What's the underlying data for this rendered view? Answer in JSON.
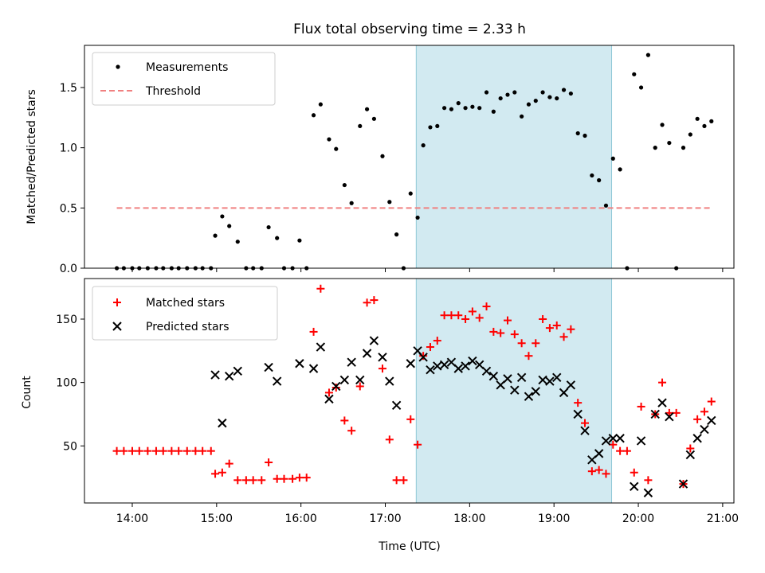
{
  "chart_data": [
    {
      "type": "scatter",
      "title": "Flux total observing time = 2.33 h",
      "xlabel": "",
      "ylabel": "Matched/Predicted stars",
      "ylim": [
        0,
        1.85
      ],
      "xlim": [
        "13:26",
        "21:08"
      ],
      "x_ticks": [
        "14:00",
        "15:00",
        "16:00",
        "17:00",
        "18:00",
        "19:00",
        "20:00",
        "21:00"
      ],
      "y_ticks": [
        "0.0",
        "0.5",
        "1.0",
        "1.5"
      ],
      "legend_position": "top-left",
      "highlight_span": {
        "start": "17:22",
        "end": "19:41",
        "color": "#add8e6"
      },
      "series": [
        {
          "name": "Measurements",
          "marker": "dot",
          "color": "#000000",
          "points": [
            [
              "13:49",
              0
            ],
            [
              "13:54",
              0
            ],
            [
              "14:00",
              0
            ],
            [
              "14:05",
              0
            ],
            [
              "14:11",
              0
            ],
            [
              "14:17",
              0
            ],
            [
              "14:22",
              0
            ],
            [
              "14:28",
              0
            ],
            [
              "14:33",
              0
            ],
            [
              "14:39",
              0
            ],
            [
              "14:45",
              0
            ],
            [
              "14:50",
              0
            ],
            [
              "14:56",
              0
            ],
            [
              "14:59",
              0.27
            ],
            [
              "15:04",
              0.43
            ],
            [
              "15:09",
              0.35
            ],
            [
              "15:15",
              0.22
            ],
            [
              "15:21",
              0
            ],
            [
              "15:26",
              0
            ],
            [
              "15:32",
              0
            ],
            [
              "15:37",
              0.34
            ],
            [
              "15:43",
              0.25
            ],
            [
              "15:48",
              0
            ],
            [
              "15:54",
              0
            ],
            [
              "15:59",
              0.23
            ],
            [
              "16:04",
              0
            ],
            [
              "16:09",
              1.27
            ],
            [
              "16:14",
              1.36
            ],
            [
              "16:20",
              1.07
            ],
            [
              "16:25",
              0.99
            ],
            [
              "16:31",
              0.69
            ],
            [
              "16:36",
              0.54
            ],
            [
              "16:42",
              1.18
            ],
            [
              "16:47",
              1.32
            ],
            [
              "16:52",
              1.24
            ],
            [
              "16:58",
              0.93
            ],
            [
              "17:03",
              0.55
            ],
            [
              "17:08",
              0.28
            ],
            [
              "17:13",
              0
            ],
            [
              "17:18",
              0.62
            ],
            [
              "17:23",
              0.42
            ],
            [
              "17:27",
              1.02
            ],
            [
              "17:32",
              1.17
            ],
            [
              "17:37",
              1.18
            ],
            [
              "17:42",
              1.33
            ],
            [
              "17:47",
              1.32
            ],
            [
              "17:52",
              1.37
            ],
            [
              "17:57",
              1.33
            ],
            [
              "18:02",
              1.34
            ],
            [
              "18:07",
              1.33
            ],
            [
              "18:12",
              1.46
            ],
            [
              "18:17",
              1.3
            ],
            [
              "18:22",
              1.41
            ],
            [
              "18:27",
              1.44
            ],
            [
              "18:32",
              1.46
            ],
            [
              "18:37",
              1.26
            ],
            [
              "18:42",
              1.36
            ],
            [
              "18:47",
              1.39
            ],
            [
              "18:52",
              1.46
            ],
            [
              "18:57",
              1.42
            ],
            [
              "19:02",
              1.41
            ],
            [
              "19:07",
              1.48
            ],
            [
              "19:12",
              1.45
            ],
            [
              "19:17",
              1.12
            ],
            [
              "19:22",
              1.1
            ],
            [
              "19:27",
              0.77
            ],
            [
              "19:32",
              0.73
            ],
            [
              "19:37",
              0.52
            ],
            [
              "19:42",
              0.91
            ],
            [
              "19:47",
              0.82
            ],
            [
              "19:52",
              0
            ],
            [
              "19:57",
              1.61
            ],
            [
              "20:02",
              1.5
            ],
            [
              "20:07",
              1.77
            ],
            [
              "20:12",
              1.0
            ],
            [
              "20:17",
              1.19
            ],
            [
              "20:22",
              1.04
            ],
            [
              "20:27",
              0
            ],
            [
              "20:32",
              1.0
            ],
            [
              "20:37",
              1.11
            ],
            [
              "20:42",
              1.24
            ],
            [
              "20:47",
              1.18
            ],
            [
              "20:52",
              1.22
            ]
          ]
        },
        {
          "name": "Threshold",
          "marker": "dashed-line",
          "color": "#f08080",
          "points": [
            [
              "13:49",
              0.5
            ],
            [
              "20:52",
              0.5
            ]
          ]
        }
      ]
    },
    {
      "type": "scatter",
      "title": "",
      "xlabel": "Time (UTC)",
      "ylabel": "Count",
      "ylim": [
        5,
        182
      ],
      "xlim": [
        "13:26",
        "21:08"
      ],
      "x_ticks": [
        "14:00",
        "15:00",
        "16:00",
        "17:00",
        "18:00",
        "19:00",
        "20:00",
        "21:00"
      ],
      "y_ticks": [
        "50",
        "100",
        "150"
      ],
      "legend_position": "top-left",
      "highlight_span": {
        "start": "17:22",
        "end": "19:41",
        "color": "#add8e6"
      },
      "series": [
        {
          "name": "Matched stars",
          "marker": "plus",
          "color": "#ff0000",
          "points": [
            [
              "13:49",
              46
            ],
            [
              "13:54",
              46
            ],
            [
              "14:00",
              46
            ],
            [
              "14:05",
              46
            ],
            [
              "14:11",
              46
            ],
            [
              "14:17",
              46
            ],
            [
              "14:22",
              46
            ],
            [
              "14:28",
              46
            ],
            [
              "14:33",
              46
            ],
            [
              "14:39",
              46
            ],
            [
              "14:45",
              46
            ],
            [
              "14:50",
              46
            ],
            [
              "14:56",
              46
            ],
            [
              "14:59",
              28
            ],
            [
              "15:04",
              29
            ],
            [
              "15:09",
              36
            ],
            [
              "15:15",
              23
            ],
            [
              "15:21",
              23
            ],
            [
              "15:26",
              23
            ],
            [
              "15:32",
              23
            ],
            [
              "15:37",
              37
            ],
            [
              "15:43",
              24
            ],
            [
              "15:48",
              24
            ],
            [
              "15:54",
              24
            ],
            [
              "15:59",
              25
            ],
            [
              "16:04",
              25
            ],
            [
              "16:09",
              140
            ],
            [
              "16:14",
              174
            ],
            [
              "16:20",
              92
            ],
            [
              "16:25",
              96
            ],
            [
              "16:31",
              70
            ],
            [
              "16:36",
              62
            ],
            [
              "16:42",
              97
            ],
            [
              "16:47",
              163
            ],
            [
              "16:52",
              165
            ],
            [
              "16:58",
              111
            ],
            [
              "17:03",
              55
            ],
            [
              "17:08",
              23
            ],
            [
              "17:13",
              23
            ],
            [
              "17:18",
              71
            ],
            [
              "17:23",
              51
            ],
            [
              "17:27",
              121
            ],
            [
              "17:32",
              128
            ],
            [
              "17:37",
              133
            ],
            [
              "17:42",
              153
            ],
            [
              "17:47",
              153
            ],
            [
              "17:52",
              153
            ],
            [
              "17:57",
              150
            ],
            [
              "18:02",
              156
            ],
            [
              "18:07",
              151
            ],
            [
              "18:12",
              160
            ],
            [
              "18:17",
              140
            ],
            [
              "18:22",
              139
            ],
            [
              "18:27",
              149
            ],
            [
              "18:32",
              138
            ],
            [
              "18:37",
              131
            ],
            [
              "18:42",
              121
            ],
            [
              "18:47",
              131
            ],
            [
              "18:52",
              150
            ],
            [
              "18:57",
              143
            ],
            [
              "19:02",
              145
            ],
            [
              "19:07",
              136
            ],
            [
              "19:12",
              142
            ],
            [
              "19:17",
              84
            ],
            [
              "19:22",
              68
            ],
            [
              "19:27",
              30
            ],
            [
              "19:32",
              31
            ],
            [
              "19:37",
              28
            ],
            [
              "19:42",
              51
            ],
            [
              "19:47",
              46
            ],
            [
              "19:52",
              46
            ],
            [
              "19:57",
              29
            ],
            [
              "20:02",
              81
            ],
            [
              "20:07",
              23
            ],
            [
              "20:12",
              75
            ],
            [
              "20:17",
              100
            ],
            [
              "20:22",
              76
            ],
            [
              "20:27",
              76
            ],
            [
              "20:32",
              20
            ],
            [
              "20:37",
              48
            ],
            [
              "20:42",
              71
            ],
            [
              "20:47",
              77
            ],
            [
              "20:52",
              85
            ]
          ]
        },
        {
          "name": "Predicted stars",
          "marker": "x",
          "color": "#000000",
          "points": [
            [
              "14:59",
              106
            ],
            [
              "15:04",
              68
            ],
            [
              "15:09",
              105
            ],
            [
              "15:15",
              109
            ],
            [
              "15:37",
              112
            ],
            [
              "15:43",
              101
            ],
            [
              "15:59",
              115
            ],
            [
              "16:09",
              111
            ],
            [
              "16:14",
              128
            ],
            [
              "16:20",
              87
            ],
            [
              "16:25",
              97
            ],
            [
              "16:31",
              102
            ],
            [
              "16:36",
              116
            ],
            [
              "16:42",
              102
            ],
            [
              "16:47",
              123
            ],
            [
              "16:52",
              133
            ],
            [
              "16:58",
              120
            ],
            [
              "17:03",
              101
            ],
            [
              "17:08",
              82
            ],
            [
              "17:18",
              115
            ],
            [
              "17:23",
              125
            ],
            [
              "17:27",
              120
            ],
            [
              "17:32",
              110
            ],
            [
              "17:37",
              113
            ],
            [
              "17:42",
              114
            ],
            [
              "17:47",
              116
            ],
            [
              "17:52",
              111
            ],
            [
              "17:57",
              113
            ],
            [
              "18:02",
              117
            ],
            [
              "18:07",
              114
            ],
            [
              "18:12",
              109
            ],
            [
              "18:17",
              105
            ],
            [
              "18:22",
              98
            ],
            [
              "18:27",
              103
            ],
            [
              "18:32",
              94
            ],
            [
              "18:37",
              104
            ],
            [
              "18:42",
              89
            ],
            [
              "18:47",
              93
            ],
            [
              "18:52",
              102
            ],
            [
              "18:57",
              101
            ],
            [
              "19:02",
              104
            ],
            [
              "19:07",
              92
            ],
            [
              "19:12",
              98
            ],
            [
              "19:17",
              75
            ],
            [
              "19:22",
              62
            ],
            [
              "19:27",
              39
            ],
            [
              "19:32",
              44
            ],
            [
              "19:37",
              54
            ],
            [
              "19:42",
              56
            ],
            [
              "19:47",
              56
            ],
            [
              "19:57",
              18
            ],
            [
              "20:02",
              54
            ],
            [
              "20:07",
              13
            ],
            [
              "20:12",
              75
            ],
            [
              "20:17",
              84
            ],
            [
              "20:22",
              73
            ],
            [
              "20:32",
              20
            ],
            [
              "20:37",
              43
            ],
            [
              "20:42",
              56
            ],
            [
              "20:47",
              63
            ],
            [
              "20:52",
              70
            ]
          ]
        }
      ]
    }
  ]
}
